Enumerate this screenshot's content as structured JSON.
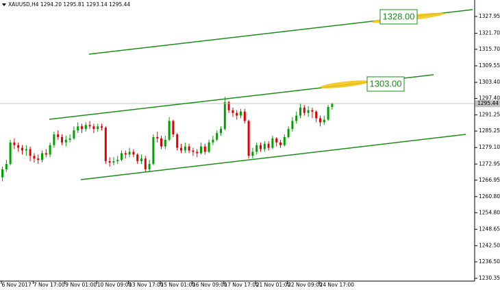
{
  "chart_data": {
    "type": "candlestick",
    "title": "XAUUSD,H4 1294.20 1295.81 1293.14 1295.44",
    "annotations": [
      "1328.00",
      "1303.00"
    ],
    "up_color": "#00a000",
    "down_color": "#e00000",
    "categories": [
      "6 Nov 2017",
      null,
      null,
      null,
      null,
      null,
      null,
      null,
      "7 Nov 17:00",
      null,
      null,
      null,
      null,
      null,
      null,
      null,
      "9 Nov 01:00",
      null,
      null,
      null,
      null,
      null,
      null,
      null,
      "10 Nov 09:00",
      null,
      null,
      null,
      null,
      null,
      null,
      null,
      "13 Nov 17:00",
      null,
      null,
      null,
      null,
      null,
      null,
      null,
      "15 Nov 01:00",
      null,
      null,
      null,
      null,
      null,
      null,
      null,
      "16 Nov 09:00",
      null,
      null,
      null,
      null,
      null,
      null,
      null,
      "17 Nov 17:00",
      null,
      null,
      null,
      null,
      null,
      null,
      null,
      "21 Nov 01:00",
      null,
      null,
      null,
      null,
      null,
      null,
      null,
      "22 Nov 09:00",
      null,
      null,
      null,
      null,
      null,
      null,
      null,
      "24 Nov 17:00",
      null,
      null,
      null
    ],
    "open": [
      1268,
      1271,
      1273,
      1281,
      1280,
      1279,
      1278,
      1278.5,
      1276,
      1275,
      1274.5,
      1277,
      1276.5,
      1280,
      1284,
      1283,
      1281,
      1282,
      1282.5,
      1285.5,
      1287,
      1286,
      1287.5,
      1287,
      1286,
      1287,
      1286.5,
      1274,
      1273.5,
      1274,
      1274.5,
      1277,
      1276.5,
      1277.5,
      1276.5,
      1274,
      1275,
      1271,
      1273,
      1283,
      1282.5,
      1279.5,
      1282,
      1289,
      1284,
      1279,
      1278,
      1279.5,
      1278,
      1277.5,
      1277,
      1279.5,
      1277.5,
      1281,
      1282,
      1284.5,
      1286,
      1296,
      1293,
      1292,
      1291,
      1292.5,
      1289,
      1276,
      1277.5,
      1280,
      1278.5,
      1280.5,
      1279,
      1282.5,
      1281,
      1280,
      1283,
      1286,
      1289,
      1291,
      1294,
      1292,
      1293,
      1292.5,
      1290,
      1288.5,
      1289.5,
      1294.2
    ],
    "high": [
      1272,
      1274.5,
      1282,
      1282.5,
      1281,
      1280,
      1280,
      1279.5,
      1277,
      1276.5,
      1278,
      1278.5,
      1281,
      1285,
      1285.5,
      1284,
      1283.5,
      1284,
      1287,
      1288.5,
      1288,
      1288.5,
      1289,
      1288,
      1288,
      1288,
      1287,
      1275.5,
      1275.5,
      1276,
      1278,
      1278,
      1279,
      1278.5,
      1277,
      1276.5,
      1276,
      1274.5,
      1284,
      1285,
      1283.5,
      1283.5,
      1290.5,
      1289.5,
      1284.5,
      1280.5,
      1281,
      1280.5,
      1279,
      1278.5,
      1281,
      1280.5,
      1282,
      1283.5,
      1285.5,
      1287,
      1298,
      1296.5,
      1294,
      1293,
      1293.5,
      1293.5,
      1289.5,
      1279,
      1281,
      1281,
      1281.5,
      1281.5,
      1283.5,
      1283,
      1282,
      1284,
      1287,
      1290.5,
      1292.5,
      1295.5,
      1295,
      1294.5,
      1294,
      1293,
      1291,
      1291,
      1295,
      1295.81
    ],
    "low": [
      1266.5,
      1270,
      1272.5,
      1278.5,
      1277.5,
      1276.5,
      1276,
      1274,
      1273.5,
      1273,
      1273.5,
      1275.5,
      1275.5,
      1279,
      1282,
      1280,
      1279.5,
      1281,
      1282,
      1284.5,
      1284.5,
      1285,
      1286,
      1284.5,
      1285,
      1285.5,
      1273,
      1272,
      1272.5,
      1273,
      1274,
      1275,
      1275.5,
      1275.5,
      1273,
      1273,
      1270,
      1270,
      1272.5,
      1281,
      1278.5,
      1278.5,
      1281.5,
      1283,
      1278,
      1277,
      1277,
      1277,
      1276,
      1275.5,
      1276.5,
      1276.5,
      1277,
      1280,
      1281.5,
      1283.5,
      1285.5,
      1292,
      1290.5,
      1289.5,
      1290,
      1288,
      1275,
      1275,
      1276.5,
      1277.5,
      1277.5,
      1278,
      1278.5,
      1279.5,
      1279,
      1279.5,
      1282.5,
      1285,
      1288,
      1290,
      1291,
      1290.5,
      1290,
      1288.5,
      1287,
      1287.5,
      1289,
      1293.14
    ],
    "close": [
      1271,
      1273,
      1281,
      1280,
      1279,
      1278,
      1278.5,
      1276,
      1275,
      1274.5,
      1277,
      1276.5,
      1280,
      1284,
      1283,
      1281,
      1282,
      1282.5,
      1285.5,
      1287,
      1286,
      1287.5,
      1287,
      1286,
      1287,
      1286.5,
      1274,
      1273.5,
      1274,
      1274.5,
      1277,
      1276.5,
      1277.5,
      1276.5,
      1274,
      1275,
      1271,
      1273,
      1283,
      1282.5,
      1279.5,
      1282,
      1289,
      1284,
      1279,
      1278,
      1279.5,
      1278,
      1277.5,
      1277,
      1279.5,
      1277.5,
      1281,
      1282,
      1284.5,
      1286,
      1296,
      1293,
      1292,
      1291,
      1292.5,
      1289,
      1276,
      1277.5,
      1280,
      1278.5,
      1280.5,
      1279,
      1282.5,
      1281,
      1280,
      1283,
      1286,
      1289,
      1291,
      1294,
      1292,
      1293,
      1292.5,
      1290,
      1288.5,
      1289.5,
      1294.2,
      1295.44
    ],
    "ylim": [
      1229.33,
      1334.08
    ],
    "yticks": [
      1327.95,
      {
        "value": 1321.7,
        "label": "1321.70"
      },
      {
        "value": 1315.7,
        "label": "1315.70"
      },
      1309.55,
      {
        "value": 1303.4,
        "label": "1303.40"
      },
      {
        "value": 1297.4,
        "label": "1297.40"
      },
      1291.25,
      1285.25,
      {
        "value": 1279.1,
        "label": "1279.10"
      },
      1272.95,
      1266.95,
      {
        "value": 1260.8,
        "label": "1260.80"
      },
      {
        "value": 1254.8,
        "label": "1254.80"
      },
      1248.65,
      {
        "value": 1242.5,
        "label": "1242.50"
      },
      {
        "value": 1236.5,
        "label": "1236.50"
      },
      1230.35
    ]
  }
}
